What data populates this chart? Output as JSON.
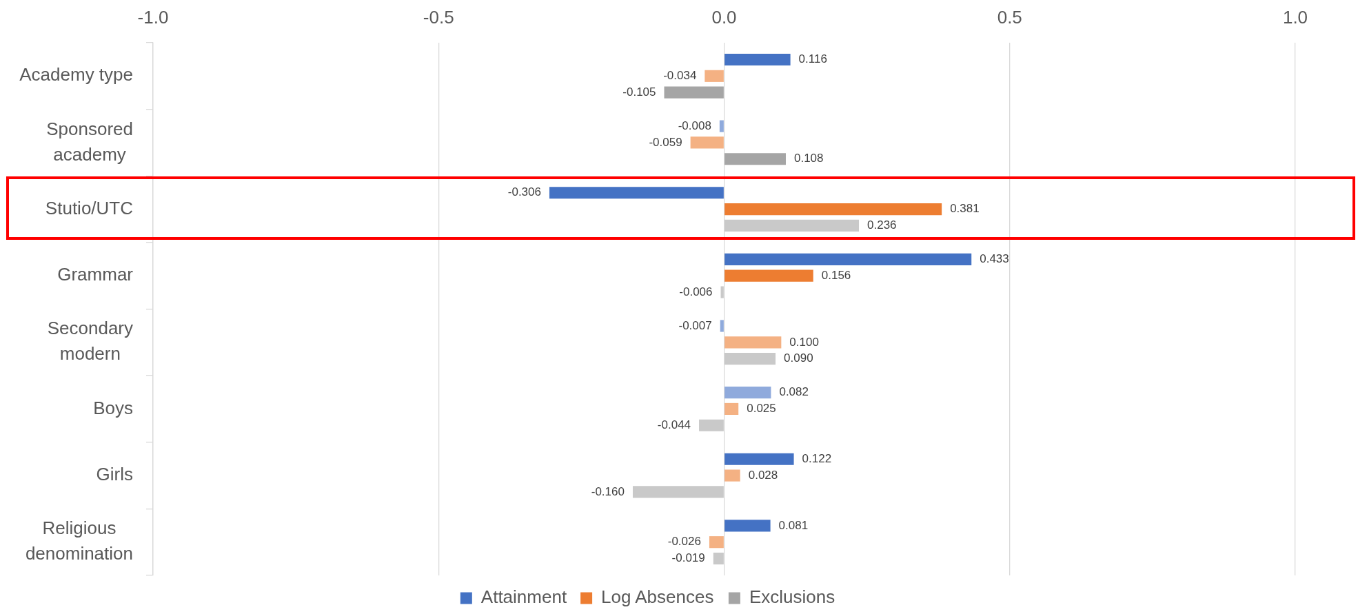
{
  "chart_data": {
    "type": "bar",
    "orientation": "horizontal",
    "categories": [
      "Academy type",
      "Sponsored academy",
      "Stutio/UTC",
      "Grammar",
      "Secondary modern",
      "Boys",
      "Girls",
      "Religious denomination"
    ],
    "series": [
      {
        "name": "Attainment",
        "color": "#4472c4",
        "colors": [
          "#4472c4",
          "#8faadc",
          "#4472c4",
          "#4472c4",
          "#8faadc",
          "#8faadc",
          "#4472c4",
          "#4472c4"
        ],
        "values": [
          0.116,
          -0.008,
          -0.306,
          0.433,
          -0.007,
          0.082,
          0.122,
          0.081
        ],
        "value_labels": [
          "0.116",
          "-0.008",
          "-0.306",
          "0.433",
          "-0.007",
          "0.082",
          "0.122",
          "0.081"
        ]
      },
      {
        "name": "Log Absences",
        "color": "#ed7d31",
        "colors": [
          "#f4b183",
          "#f4b183",
          "#ed7d31",
          "#ed7d31",
          "#f4b183",
          "#f4b183",
          "#f4b183",
          "#f4b183"
        ],
        "values": [
          -0.034,
          -0.059,
          0.381,
          0.156,
          0.1,
          0.025,
          0.028,
          -0.026
        ],
        "value_labels": [
          "-0.034",
          "-0.059",
          "0.381",
          "0.156",
          "0.100",
          "0.025",
          "0.028",
          "-0.026"
        ]
      },
      {
        "name": "Exclusions",
        "color": "#a5a5a5",
        "colors": [
          "#a5a5a5",
          "#a5a5a5",
          "#c9c9c9",
          "#c9c9c9",
          "#c9c9c9",
          "#c9c9c9",
          "#c9c9c9",
          "#c9c9c9"
        ],
        "values": [
          -0.105,
          0.108,
          0.236,
          -0.006,
          0.09,
          -0.044,
          -0.16,
          -0.019
        ],
        "value_labels": [
          "-0.105",
          "0.108",
          "0.236",
          "-0.006",
          "0.090",
          "-0.044",
          "-0.160",
          "-0.019"
        ]
      }
    ],
    "xlim": [
      -1,
      1
    ],
    "xticks": [
      {
        "value": -1,
        "label": "-1.0"
      },
      {
        "value": -0.5,
        "label": "-0.5"
      },
      {
        "value": 0,
        "label": "0.0"
      },
      {
        "value": 0.5,
        "label": "0.5"
      },
      {
        "value": 1,
        "label": "1.0"
      }
    ],
    "grid": "x",
    "legend": "bottom"
  }
}
